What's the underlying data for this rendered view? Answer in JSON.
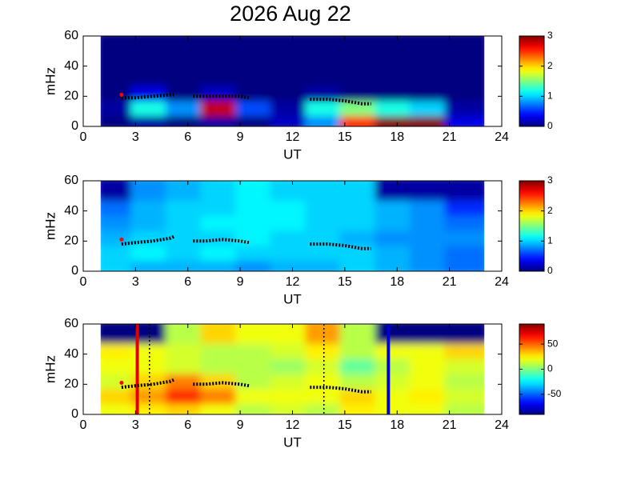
{
  "chart_data": [
    {
      "type": "heatmap",
      "title": "2026 Aug 22",
      "xlabel": "UT",
      "ylabel": "mHz",
      "colormap": "jet",
      "xlim": [
        0,
        24
      ],
      "xticks": [
        0,
        3,
        6,
        9,
        12,
        15,
        18,
        21,
        24
      ],
      "ylim": [
        0,
        60
      ],
      "yticks": [
        0,
        20,
        40,
        60
      ],
      "x_edges": [
        1,
        3,
        5,
        7,
        9,
        11,
        13,
        15,
        17,
        19,
        21,
        23
      ],
      "y_edges": [
        0,
        10,
        20,
        30,
        40,
        50,
        60
      ],
      "z": [
        [
          0,
          0.1,
          0,
          0.1,
          0,
          0.2,
          0.8,
          2.5,
          3,
          3,
          0.3
        ],
        [
          0.1,
          1.2,
          0.8,
          2.8,
          0.6,
          0.1,
          1.2,
          1.5,
          1.2,
          1.0,
          0.1
        ],
        [
          0,
          0.3,
          0,
          0.2,
          0,
          0,
          0.1,
          0,
          0,
          0,
          0
        ],
        [
          0,
          0,
          0,
          0,
          0,
          0,
          0,
          0,
          0,
          0,
          0
        ],
        [
          0,
          0,
          0,
          0,
          0,
          0,
          0,
          0,
          0,
          0,
          0
        ],
        [
          0,
          0,
          0,
          0,
          0,
          0,
          0,
          0,
          0,
          0,
          0
        ]
      ],
      "clim": [
        0,
        3
      ],
      "cticks": [
        0,
        1,
        2,
        3
      ],
      "series": [
        {
          "color": "#000000",
          "x": [
            2.2,
            3,
            4,
            5,
            5.2,
            null,
            6.3,
            7,
            8,
            9,
            9.5,
            null,
            13,
            14,
            15,
            16,
            16.5
          ],
          "values": [
            19,
            19,
            20,
            21,
            21,
            null,
            20,
            20,
            20,
            20,
            19,
            null,
            18,
            18,
            17,
            15,
            15
          ]
        },
        {
          "color": "#ff0000",
          "x": [
            2.2
          ],
          "values": [
            21
          ]
        }
      ]
    },
    {
      "type": "heatmap",
      "xlabel": "UT",
      "ylabel": "mHz",
      "colormap": "jet",
      "xlim": [
        0,
        24
      ],
      "xticks": [
        0,
        3,
        6,
        9,
        12,
        15,
        18,
        21,
        24
      ],
      "ylim": [
        0,
        60
      ],
      "yticks": [
        0,
        20,
        40,
        60
      ],
      "x_edges": [
        1,
        3,
        5,
        7,
        9,
        11,
        13,
        15,
        17,
        19,
        21,
        23
      ],
      "y_edges": [
        0,
        10,
        20,
        30,
        40,
        50,
        60
      ],
      "z": [
        [
          1.0,
          0.9,
          0.9,
          0.9,
          0.8,
          0.9,
          0.9,
          1.0,
          0.9,
          0.8,
          0.7
        ],
        [
          1.0,
          1.1,
          1.0,
          1.1,
          1.0,
          1.0,
          1.0,
          1.0,
          0.9,
          0.8,
          0.7
        ],
        [
          0.9,
          1.0,
          1.0,
          1.0,
          1.1,
          1.0,
          1.0,
          0.9,
          0.8,
          0.8,
          0.8
        ],
        [
          0.8,
          0.9,
          1.0,
          1.1,
          1.1,
          1.1,
          1.0,
          1.0,
          0.9,
          0.8,
          0.7
        ],
        [
          0.7,
          0.9,
          1.0,
          1.0,
          1.1,
          1.1,
          1.0,
          1.0,
          0.9,
          0.8,
          0.5
        ],
        [
          0.1,
          0.8,
          0.9,
          1.0,
          1.1,
          1.0,
          1.0,
          1.0,
          0.1,
          0.1,
          0.1
        ]
      ],
      "clim": [
        0,
        3
      ],
      "cticks": [
        0,
        1,
        2,
        3
      ],
      "series": [
        {
          "color": "#000000",
          "x": [
            2.2,
            3,
            4,
            5,
            5.2,
            null,
            6.3,
            7,
            8,
            9,
            9.5,
            null,
            13,
            14,
            15,
            16,
            16.5
          ],
          "values": [
            18,
            19,
            20,
            22,
            23,
            null,
            20,
            20,
            21,
            20,
            19,
            null,
            18,
            18,
            17,
            15,
            15
          ]
        },
        {
          "color": "#ff0000",
          "x": [
            2.2
          ],
          "values": [
            21
          ]
        }
      ]
    },
    {
      "type": "heatmap",
      "xlabel": "UT",
      "ylabel": "mHz",
      "colormap": "jet",
      "xlim": [
        0,
        24
      ],
      "xticks": [
        0,
        3,
        6,
        9,
        12,
        15,
        18,
        21,
        24
      ],
      "ylim": [
        0,
        60
      ],
      "yticks": [
        0,
        20,
        40,
        60
      ],
      "x_edges": [
        1,
        3,
        5,
        7,
        9,
        11,
        13,
        15,
        17,
        19,
        21,
        23
      ],
      "y_edges": [
        0,
        10,
        20,
        30,
        40,
        50,
        60
      ],
      "z": [
        [
          20,
          25,
          30,
          20,
          10,
          15,
          10,
          25,
          20,
          20,
          10
        ],
        [
          30,
          40,
          60,
          45,
          20,
          20,
          20,
          30,
          20,
          25,
          15
        ],
        [
          15,
          30,
          45,
          30,
          10,
          15,
          20,
          10,
          15,
          20,
          10
        ],
        [
          20,
          20,
          15,
          10,
          10,
          5,
          15,
          -5,
          10,
          20,
          15
        ],
        [
          25,
          20,
          15,
          10,
          10,
          15,
          25,
          10,
          20,
          20,
          30
        ],
        [
          -90,
          -90,
          10,
          30,
          20,
          20,
          40,
          10,
          -90,
          -90,
          -90
        ]
      ],
      "clim": [
        -90,
        90
      ],
      "cticks": [
        -50,
        0,
        50
      ],
      "series": [
        {
          "color": "#000000",
          "x": [
            2.2,
            3,
            4,
            5,
            5.2,
            null,
            6.3,
            7,
            8,
            9,
            9.5,
            null,
            13,
            14,
            15,
            16,
            16.5
          ],
          "values": [
            18,
            19,
            20,
            22,
            23,
            null,
            20,
            20,
            21,
            20,
            19,
            null,
            18,
            18,
            17,
            15,
            15
          ]
        },
        {
          "color": "#ff0000",
          "x": [
            2.2
          ],
          "values": [
            21
          ]
        }
      ],
      "vlines": [
        {
          "x": 3.1,
          "color": "#e00000",
          "style": "solid"
        },
        {
          "x": 3.8,
          "color": "#000000",
          "style": "dotted"
        },
        {
          "x": 13.8,
          "color": "#000000",
          "style": "dotted"
        },
        {
          "x": 17.5,
          "color": "#0000cc",
          "style": "solid"
        }
      ]
    }
  ]
}
